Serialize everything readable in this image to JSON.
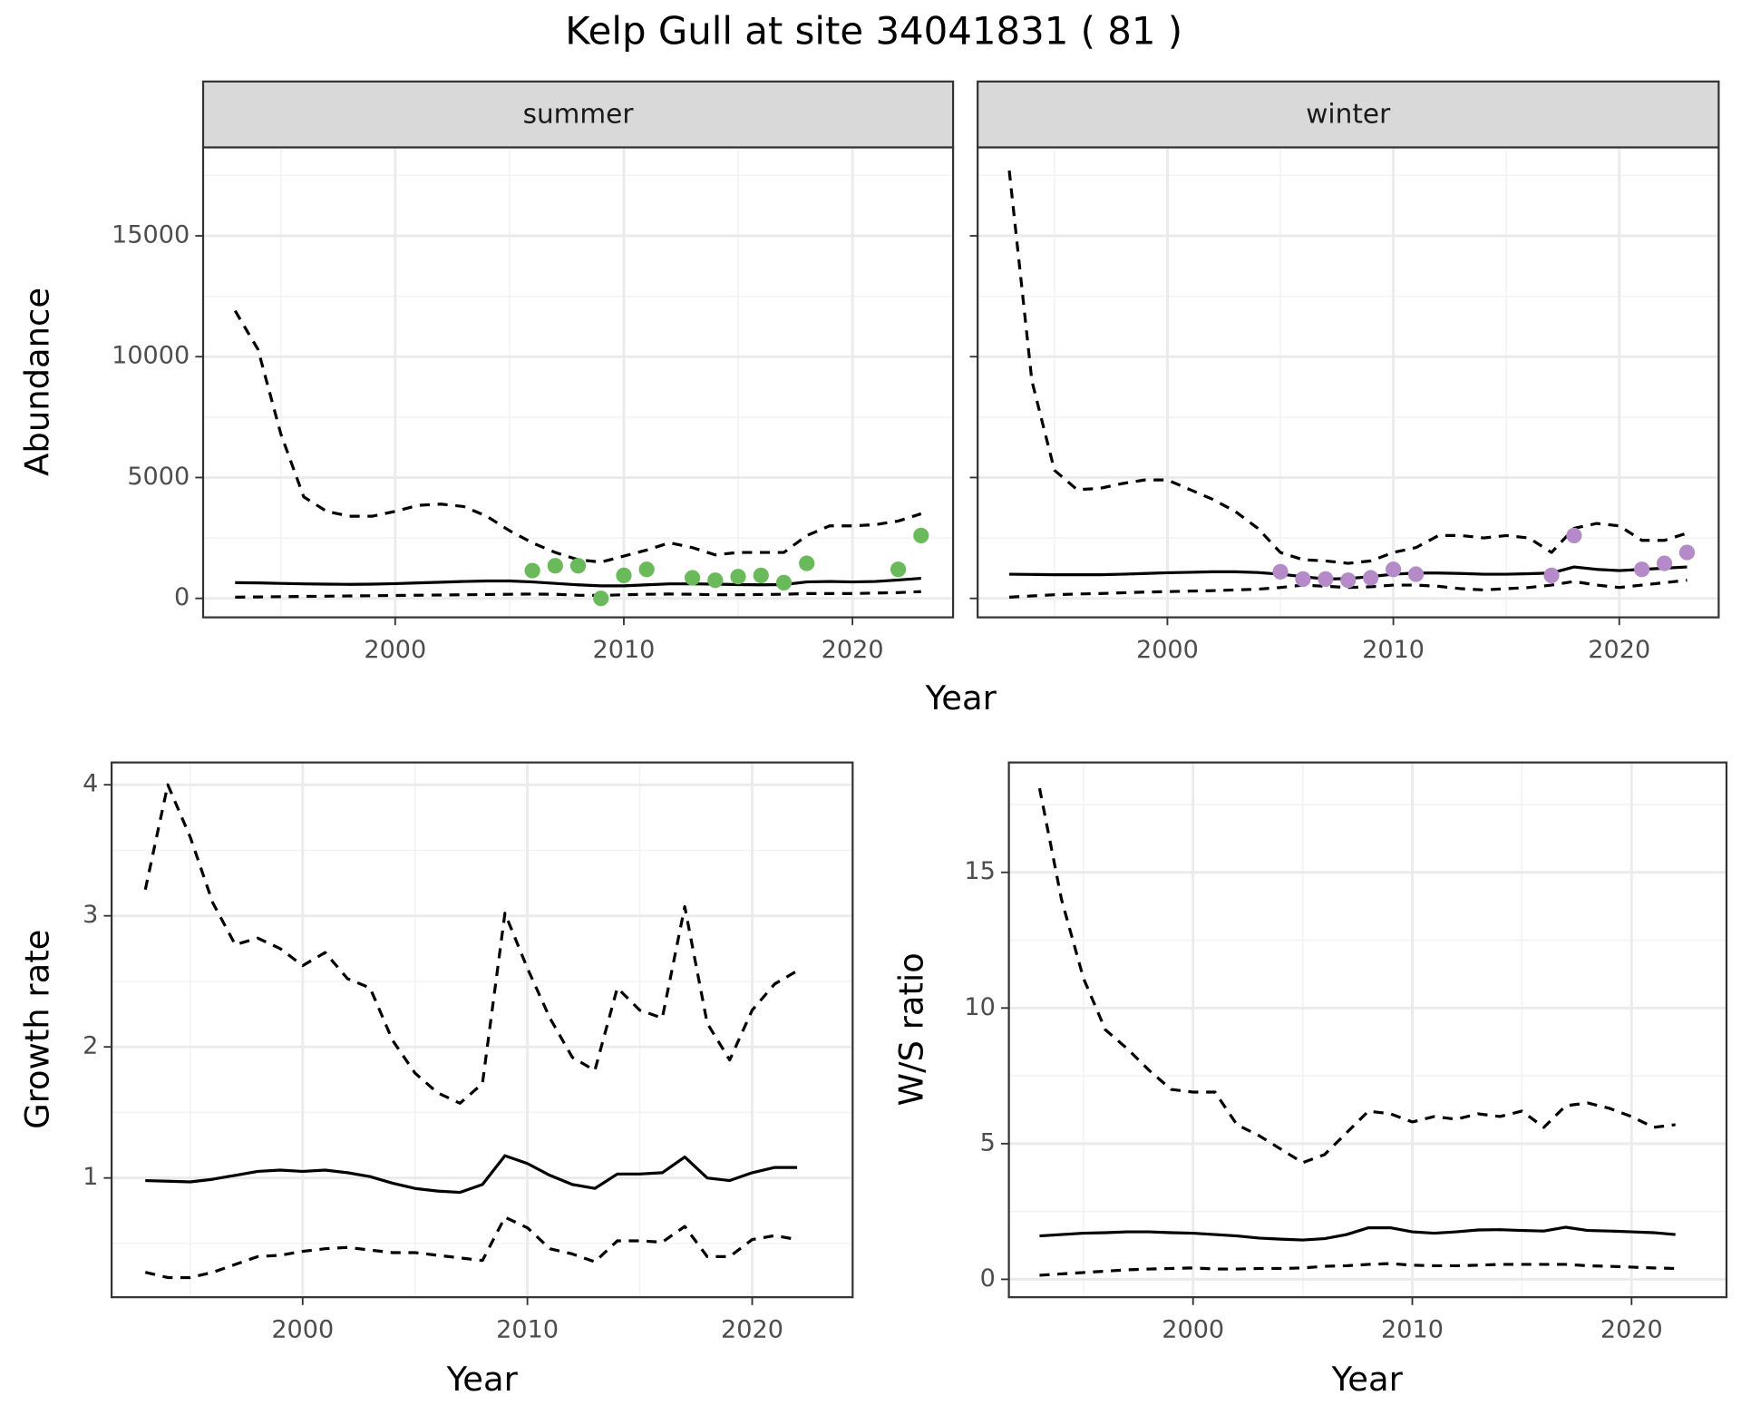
{
  "title": "Kelp Gull at site 34041831 ( 81 )",
  "chart_data": [
    {
      "type": "line",
      "facet": "summer",
      "xlabel": "Year",
      "ylabel": "Abundance",
      "xlim": [
        1991.6,
        2024.4
      ],
      "xticks": [
        2000,
        2010,
        2020
      ],
      "ylim": [
        -785,
        18660
      ],
      "yticks": [
        0,
        5000,
        10000,
        15000
      ],
      "grid": true,
      "x": [
        1993,
        1994,
        1995,
        1996,
        1997,
        1998,
        1999,
        2000,
        2001,
        2002,
        2003,
        2004,
        2005,
        2006,
        2007,
        2008,
        2009,
        2010,
        2011,
        2012,
        2013,
        2014,
        2015,
        2016,
        2017,
        2018,
        2019,
        2020,
        2021,
        2022,
        2023
      ],
      "series": [
        {
          "style": "dashed",
          "color": "#000000",
          "values": [
            11900,
            10300,
            6800,
            4200,
            3600,
            3400,
            3400,
            3600,
            3850,
            3900,
            3800,
            3400,
            2800,
            2300,
            1900,
            1600,
            1500,
            1750,
            2000,
            2300,
            2100,
            1800,
            1900,
            1900,
            1900,
            2600,
            3000,
            3000,
            3050,
            3200,
            3500
          ]
        },
        {
          "style": "solid",
          "color": "#000000",
          "values": [
            650,
            640,
            620,
            600,
            590,
            580,
            590,
            610,
            640,
            670,
            700,
            720,
            720,
            680,
            620,
            560,
            520,
            520,
            560,
            600,
            600,
            590,
            570,
            560,
            570,
            680,
            700,
            680,
            700,
            760,
            830
          ]
        },
        {
          "style": "dashed",
          "color": "#000000",
          "values": [
            50,
            60,
            70,
            80,
            90,
            100,
            110,
            120,
            130,
            140,
            150,
            160,
            170,
            180,
            170,
            130,
            120,
            150,
            170,
            180,
            170,
            150,
            150,
            160,
            170,
            200,
            200,
            200,
            220,
            240,
            280
          ]
        },
        {
          "style": "points",
          "color": "#6aba5b",
          "x": [
            2006,
            2007,
            2008,
            2009,
            2010,
            2011,
            2013,
            2014,
            2015,
            2016,
            2017,
            2018,
            2022,
            2023
          ],
          "values": [
            1150,
            1350,
            1350,
            0,
            950,
            1200,
            850,
            750,
            900,
            950,
            650,
            1450,
            1200,
            2600
          ]
        }
      ]
    },
    {
      "type": "line",
      "facet": "winter",
      "show_ytick_labels": false,
      "xlim": [
        1991.6,
        2024.4
      ],
      "xticks": [
        2000,
        2010,
        2020
      ],
      "ylim": [
        -785,
        18660
      ],
      "yticks": [
        0,
        5000,
        10000,
        15000
      ],
      "grid": true,
      "x": [
        1993,
        1994,
        1995,
        1996,
        1997,
        1998,
        1999,
        2000,
        2001,
        2002,
        2003,
        2004,
        2005,
        2006,
        2007,
        2008,
        2009,
        2010,
        2011,
        2012,
        2013,
        2014,
        2015,
        2016,
        2017,
        2018,
        2019,
        2020,
        2021,
        2022,
        2023
      ],
      "series": [
        {
          "style": "dashed",
          "color": "#000000",
          "values": [
            17700,
            9000,
            5300,
            4500,
            4550,
            4750,
            4900,
            4900,
            4500,
            4100,
            3600,
            2900,
            1900,
            1600,
            1550,
            1450,
            1550,
            1900,
            2100,
            2600,
            2600,
            2500,
            2600,
            2500,
            1900,
            2900,
            3100,
            3000,
            2400,
            2400,
            2700
          ]
        },
        {
          "style": "solid",
          "color": "#000000",
          "values": [
            1000,
            990,
            980,
            980,
            980,
            1000,
            1030,
            1060,
            1080,
            1100,
            1100,
            1070,
            1000,
            900,
            800,
            820,
            900,
            1000,
            1050,
            1050,
            1030,
            1000,
            1000,
            1020,
            1050,
            1300,
            1200,
            1150,
            1200,
            1250,
            1300
          ]
        },
        {
          "style": "dashed",
          "color": "#000000",
          "values": [
            50,
            100,
            150,
            180,
            200,
            230,
            260,
            280,
            300,
            320,
            350,
            380,
            450,
            550,
            500,
            450,
            480,
            550,
            550,
            500,
            400,
            350,
            400,
            450,
            550,
            700,
            550,
            450,
            550,
            650,
            750
          ]
        },
        {
          "style": "points",
          "color": "#b48ac8",
          "x": [
            2005,
            2006,
            2007,
            2008,
            2009,
            2010,
            2011,
            2017,
            2018,
            2021,
            2022,
            2023
          ],
          "values": [
            1100,
            800,
            800,
            750,
            850,
            1200,
            1000,
            950,
            2600,
            1200,
            1450,
            1900
          ]
        }
      ]
    },
    {
      "type": "line",
      "xlabel": "Year",
      "ylabel": "Growth rate",
      "xlim": [
        1991.5,
        2024.47
      ],
      "xticks": [
        2000,
        2010,
        2020
      ],
      "ylim": [
        0.09,
        4.17
      ],
      "yticks": [
        1,
        2,
        3,
        4
      ],
      "grid": true,
      "x": [
        1993,
        1994,
        1995,
        1996,
        1997,
        1998,
        1999,
        2000,
        2001,
        2002,
        2003,
        2004,
        2005,
        2006,
        2007,
        2008,
        2009,
        2010,
        2011,
        2012,
        2013,
        2014,
        2015,
        2016,
        2017,
        2018,
        2019,
        2020,
        2021,
        2022
      ],
      "series": [
        {
          "style": "dashed",
          "color": "#000000",
          "values": [
            3.2,
            4.0,
            3.6,
            3.1,
            2.78,
            2.83,
            2.75,
            2.62,
            2.72,
            2.52,
            2.45,
            2.05,
            1.8,
            1.65,
            1.57,
            1.72,
            3.02,
            2.6,
            2.22,
            1.92,
            1.82,
            2.45,
            2.28,
            2.22,
            3.07,
            2.18,
            1.9,
            2.28,
            2.48,
            2.58
          ]
        },
        {
          "style": "solid",
          "color": "#000000",
          "values": [
            0.98,
            0.975,
            0.97,
            0.99,
            1.02,
            1.05,
            1.06,
            1.05,
            1.06,
            1.04,
            1.01,
            0.96,
            0.92,
            0.9,
            0.89,
            0.95,
            1.17,
            1.11,
            1.02,
            0.95,
            0.92,
            1.03,
            1.03,
            1.04,
            1.16,
            1.0,
            0.98,
            1.04,
            1.08,
            1.08
          ]
        },
        {
          "style": "dashed",
          "color": "#000000",
          "values": [
            0.28,
            0.24,
            0.24,
            0.28,
            0.34,
            0.4,
            0.41,
            0.44,
            0.46,
            0.47,
            0.45,
            0.43,
            0.43,
            0.41,
            0.39,
            0.37,
            0.7,
            0.62,
            0.46,
            0.42,
            0.36,
            0.52,
            0.52,
            0.51,
            0.63,
            0.4,
            0.4,
            0.53,
            0.56,
            0.53
          ]
        }
      ]
    },
    {
      "type": "line",
      "xlabel": "Year",
      "ylabel": "W/S ratio",
      "xlim": [
        1991.6,
        2024.33
      ],
      "xticks": [
        2000,
        2010,
        2020
      ],
      "ylim": [
        -0.66,
        19.05
      ],
      "yticks": [
        0,
        5,
        10,
        15
      ],
      "grid": true,
      "x": [
        1993,
        1994,
        1995,
        1996,
        1997,
        1998,
        1999,
        2000,
        2001,
        2002,
        2003,
        2004,
        2005,
        2006,
        2007,
        2008,
        2009,
        2010,
        2011,
        2012,
        2013,
        2014,
        2015,
        2016,
        2017,
        2018,
        2019,
        2020,
        2021,
        2022
      ],
      "series": [
        {
          "style": "dashed",
          "color": "#000000",
          "values": [
            18.1,
            14,
            11.1,
            9.2,
            8.5,
            7.7,
            7.0,
            6.9,
            6.9,
            5.7,
            5.3,
            4.8,
            4.3,
            4.6,
            5.4,
            6.2,
            6.1,
            5.8,
            6.0,
            5.9,
            6.1,
            6.0,
            6.2,
            5.6,
            6.4,
            6.5,
            6.3,
            6.0,
            5.6,
            5.7
          ]
        },
        {
          "style": "solid",
          "color": "#000000",
          "values": [
            1.6,
            1.65,
            1.7,
            1.72,
            1.75,
            1.75,
            1.72,
            1.7,
            1.65,
            1.6,
            1.52,
            1.48,
            1.45,
            1.5,
            1.65,
            1.9,
            1.9,
            1.75,
            1.7,
            1.75,
            1.82,
            1.83,
            1.8,
            1.78,
            1.92,
            1.8,
            1.78,
            1.75,
            1.72,
            1.65
          ]
        },
        {
          "style": "dashed",
          "color": "#000000",
          "values": [
            0.15,
            0.2,
            0.25,
            0.3,
            0.35,
            0.38,
            0.4,
            0.42,
            0.38,
            0.38,
            0.4,
            0.4,
            0.42,
            0.48,
            0.5,
            0.55,
            0.58,
            0.52,
            0.5,
            0.5,
            0.52,
            0.55,
            0.55,
            0.55,
            0.55,
            0.5,
            0.48,
            0.45,
            0.42,
            0.4
          ]
        }
      ]
    }
  ]
}
